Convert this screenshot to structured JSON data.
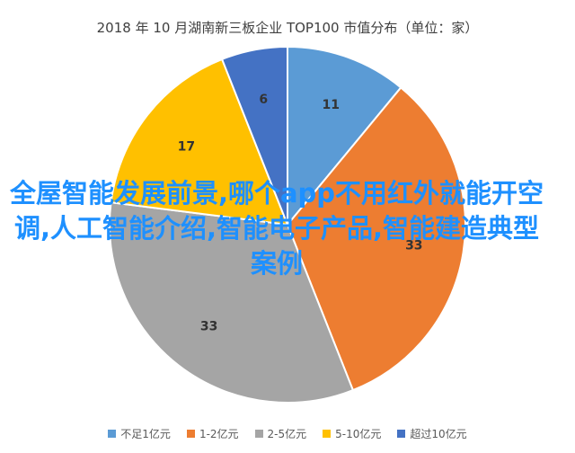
{
  "chart_data": {
    "type": "pie",
    "title": "2018 年 10 月湖南新三板企业 TOP100 市值分布（单位：家）",
    "categories": [
      "不足1亿元",
      "1-2亿元",
      "2-5亿元",
      "5-10亿元",
      "超过10亿元"
    ],
    "values": [
      11,
      33,
      33,
      17,
      6
    ],
    "colors": [
      "#5b9bd5",
      "#ed7d31",
      "#a5a5a5",
      "#ffc000",
      "#4472c4"
    ],
    "legend_position": "bottom"
  },
  "overlay_text": "全屋智能发展前景,哪个app不用红外就能开空调,人工智能介绍,智能电子产品,智能建造典型案例"
}
